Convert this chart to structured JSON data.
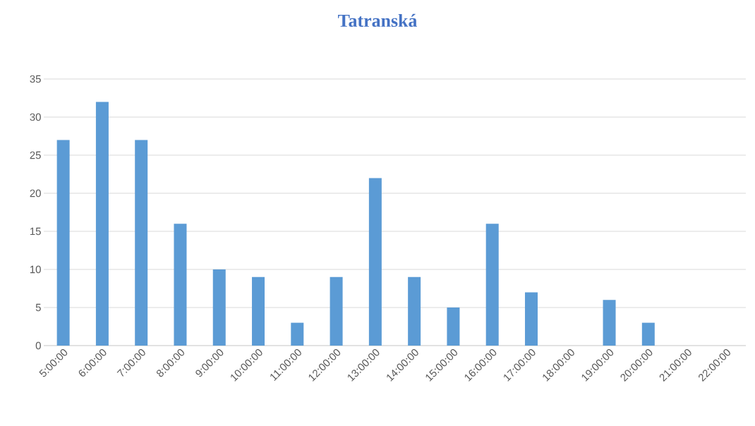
{
  "chart_data": {
    "type": "bar",
    "title": "Tatranská",
    "categories": [
      "5:00:00",
      "6:00:00",
      "7:00:00",
      "8:00:00",
      "9:00:00",
      "10:00:00",
      "11:00:00",
      "12:00:00",
      "13:00:00",
      "14:00:00",
      "15:00:00",
      "16:00:00",
      "17:00:00",
      "18:00:00",
      "19:00:00",
      "20:00:00",
      "21:00:00",
      "22:00:00"
    ],
    "values": [
      27,
      32,
      27,
      16,
      10,
      9,
      3,
      9,
      22,
      9,
      5,
      16,
      7,
      0,
      6,
      3,
      0,
      0
    ],
    "color": "#5b9bd5",
    "ylim": [
      0,
      35
    ],
    "yticks": [
      0,
      5,
      10,
      15,
      20,
      25,
      30,
      35
    ],
    "grid": "y"
  }
}
